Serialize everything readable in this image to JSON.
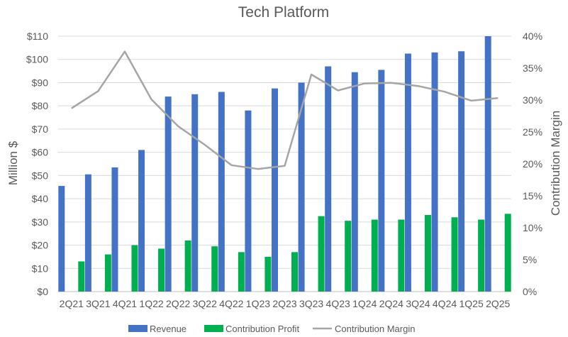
{
  "chart_data": {
    "type": "bar",
    "title": "Tech Platform",
    "categories": [
      "2Q21",
      "3Q21",
      "4Q21",
      "1Q22",
      "2Q22",
      "3Q22",
      "4Q22",
      "1Q23",
      "2Q23",
      "3Q23",
      "4Q23",
      "1Q24",
      "2Q24",
      "3Q24",
      "4Q24",
      "1Q25",
      "2Q25"
    ],
    "series": [
      {
        "name": "Revenue",
        "kind": "bar",
        "axis": "left",
        "color": "#4472C4",
        "values": [
          45.5,
          50.5,
          53.5,
          61,
          84,
          85,
          86,
          78,
          87.5,
          90,
          97,
          94.5,
          95.5,
          102.5,
          103,
          103.5,
          110
        ]
      },
      {
        "name": "Contribution Profit",
        "kind": "bar",
        "axis": "left",
        "color": "#00B050",
        "values": [
          13,
          16,
          20,
          18.5,
          22,
          19.5,
          17,
          15,
          17,
          32.5,
          30.5,
          31,
          31,
          33,
          32,
          31,
          33.5
        ]
      },
      {
        "name": "Contribution Margin",
        "kind": "line",
        "axis": "right",
        "color": "#A5A5A5",
        "values": [
          28.7,
          31.4,
          37.6,
          30.1,
          25.9,
          23.0,
          19.8,
          19.2,
          19.7,
          34.0,
          31.5,
          32.6,
          32.7,
          32.2,
          31.3,
          29.9,
          30.3
        ]
      }
    ],
    "ylabel": "Million $",
    "ylim": [
      0,
      110
    ],
    "yticks": [
      "$0",
      "$10",
      "$20",
      "$30",
      "$40",
      "$50",
      "$60",
      "$70",
      "$80",
      "$90",
      "$100",
      "$110"
    ],
    "y2label": "Contribution Margin",
    "y2lim": [
      0,
      40
    ],
    "y2ticks": [
      "0%",
      "5%",
      "10%",
      "15%",
      "20%",
      "25%",
      "30%",
      "35%",
      "40%"
    ],
    "grid": true,
    "legend_position": "bottom"
  }
}
